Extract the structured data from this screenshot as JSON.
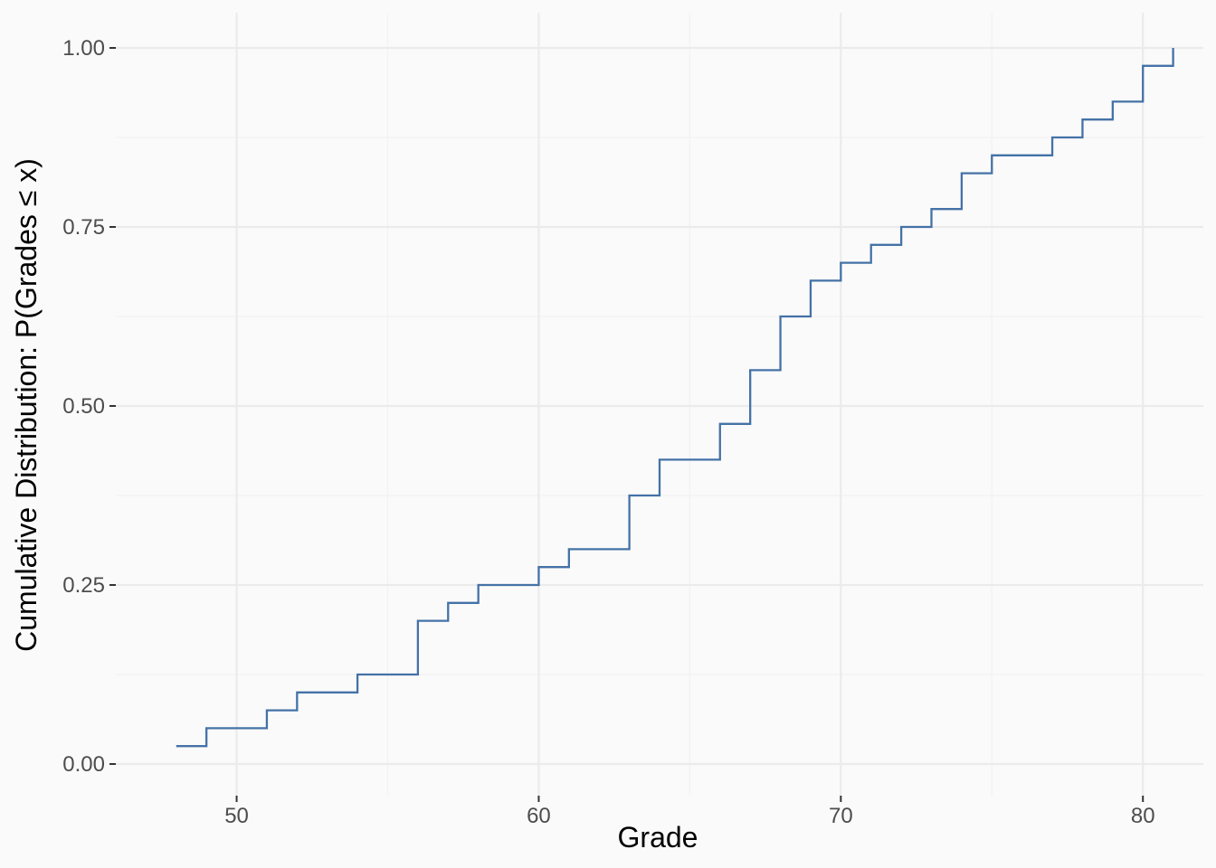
{
  "chart_data": {
    "type": "line",
    "subtype": "step",
    "xlabel": "Grade",
    "ylabel": "Cumulative Distribution: P(Grades ≤ x)",
    "xlim": [
      46,
      82
    ],
    "ylim": [
      0,
      1
    ],
    "x_ticks": [
      50,
      60,
      70,
      80
    ],
    "x_tick_labels": [
      "50",
      "60",
      "70",
      "80"
    ],
    "y_ticks": [
      0,
      0.25,
      0.5,
      0.75,
      1
    ],
    "y_tick_labels": [
      "0.00",
      "0.25",
      "0.50",
      "0.75",
      "1.00"
    ],
    "grid": true,
    "colors": {
      "line": "#4472a7",
      "background": "#fafafa",
      "grid": "#ebebeb"
    },
    "series": [
      {
        "x": [
          48,
          49,
          51,
          52,
          54,
          56,
          57,
          58,
          60,
          61,
          63,
          64,
          66,
          67,
          68,
          69,
          70,
          71,
          72,
          73,
          74,
          75,
          77,
          78,
          79,
          80,
          81
        ],
        "y": [
          0.025,
          0.05,
          0.075,
          0.1,
          0.125,
          0.2,
          0.225,
          0.25,
          0.275,
          0.3,
          0.375,
          0.425,
          0.475,
          0.55,
          0.625,
          0.675,
          0.7,
          0.725,
          0.75,
          0.775,
          0.825,
          0.85,
          0.875,
          0.9,
          0.925,
          0.975,
          1.0
        ]
      }
    ]
  }
}
